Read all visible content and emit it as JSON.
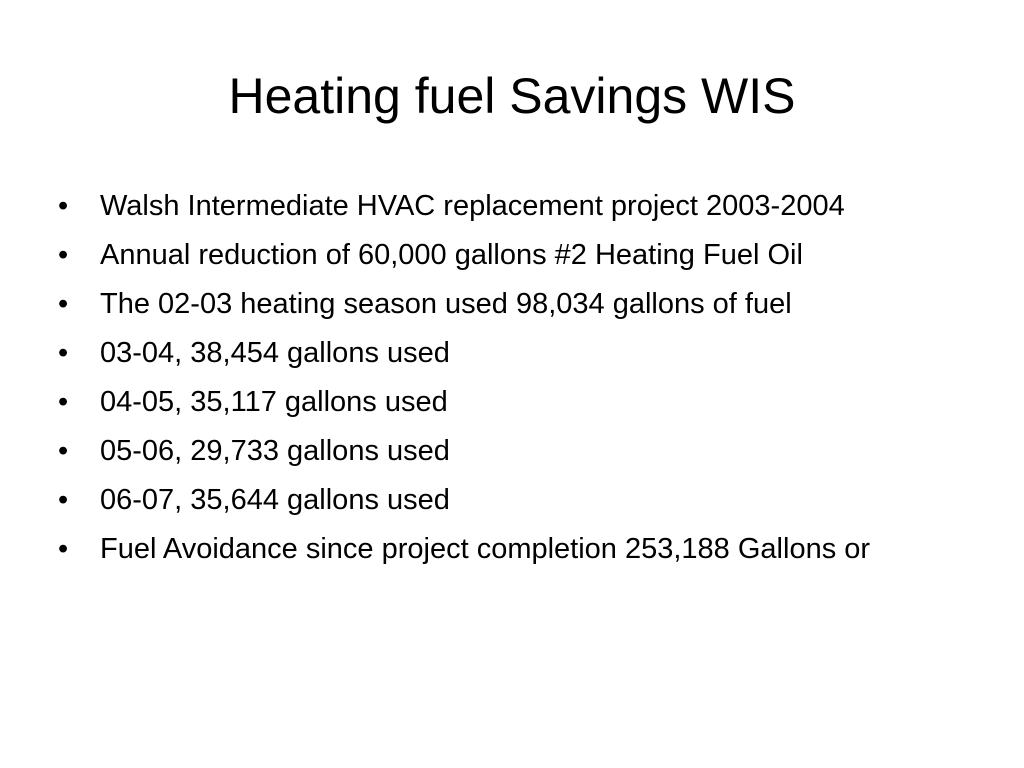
{
  "slide": {
    "title": "Heating fuel Savings WIS",
    "bullet_symbol": "•",
    "bullets": [
      {
        "text": "Walsh Intermediate HVAC replacement project 2003-2004"
      },
      {
        "text": "Annual reduction of 60,000 gallons #2 Heating Fuel Oil"
      },
      {
        "text": "The 02-03 heating season used 98,034 gallons of fuel"
      },
      {
        "text": "03-04, 38,454 gallons used"
      },
      {
        "text": "04-05, 35,117 gallons used"
      },
      {
        "text": "05-06, 29,733 gallons used"
      },
      {
        "text": "06-07, 35,644 gallons used"
      },
      {
        "text": "Fuel Avoidance since project completion 253,188 Gallons or"
      }
    ]
  }
}
